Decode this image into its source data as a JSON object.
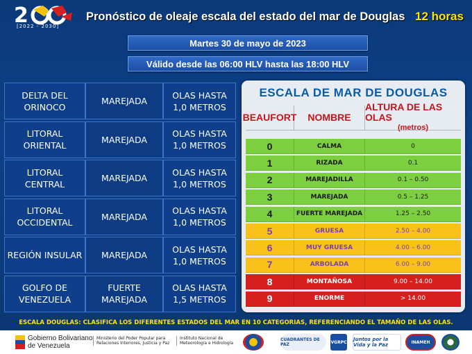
{
  "header": {
    "title": "Pronóstico de oleaje escala del estado del mar de Douglas",
    "hours": "12 horas",
    "logo_years": "[2022 - 2030]"
  },
  "date": "Martes 30 de mayo de 2023",
  "valid": "Válido desde las 06:00 HLV hasta las 18:00 HLV",
  "regions": [
    {
      "region": "DELTA DEL ORINOCO",
      "state": "MAREJADA",
      "waves": "OLAS HASTA 1,0 METROS"
    },
    {
      "region": "LITORAL ORIENTAL",
      "state": "MAREJADA",
      "waves": "OLAS HASTA 1,0 METROS"
    },
    {
      "region": "LITORAL CENTRAL",
      "state": "MAREJADA",
      "waves": "OLAS HASTA 1,0 METROS"
    },
    {
      "region": "LITORAL OCCIDENTAL",
      "state": "MAREJADA",
      "waves": "OLAS HASTA 1,0 METROS"
    },
    {
      "region": "REGIÓN INSULAR",
      "state": "MAREJADA",
      "waves": "OLAS HASTA 1,0 METROS"
    },
    {
      "region": "GOLFO DE VENEZUELA",
      "state": "FUERTE MAREJADA",
      "waves": "OLAS HASTA 1,5 METROS"
    }
  ],
  "scale": {
    "title": "ESCALA DE MAR DE DOUGLAS",
    "col_beaufort": "BEAUFORT",
    "col_name": "NOMBRE",
    "col_height": "ALTURA DE LAS OLAS",
    "col_height_unit": "(metros)",
    "rows": [
      {
        "level": "0",
        "name": "CALMA",
        "height": "0",
        "color": "#7ccf3f",
        "text": "#1a1a1a",
        "level_color": "#1a1a1a"
      },
      {
        "level": "1",
        "name": "RIZADA",
        "height": "0.1",
        "color": "#7ccf3f",
        "text": "#1a1a1a",
        "level_color": "#1a1a1a"
      },
      {
        "level": "2",
        "name": "MAREJADILLA",
        "height": "0.1 – 0.50",
        "color": "#7ccf3f",
        "text": "#1a1a1a",
        "level_color": "#1a1a1a"
      },
      {
        "level": "3",
        "name": "MAREJADA",
        "height": "0.5 – 1.25",
        "color": "#7ccf3f",
        "text": "#1a1a1a",
        "level_color": "#1a1a1a"
      },
      {
        "level": "4",
        "name": "FUERTE MAREJADA",
        "height": "1.25 – 2.50",
        "color": "#7ccf3f",
        "text": "#1a1a1a",
        "level_color": "#1a1a1a"
      },
      {
        "level": "5",
        "name": "GRUESA",
        "height": "2.50 – 4.00",
        "color": "#f8c21b",
        "text": "#7a3fb0",
        "level_color": "#7a3fb0"
      },
      {
        "level": "6",
        "name": "MUY GRUESA",
        "height": "4.00 – 6.00",
        "color": "#f8c21b",
        "text": "#7a3fb0",
        "level_color": "#7a3fb0"
      },
      {
        "level": "7",
        "name": "ARBOLADA",
        "height": "6.00 – 9.00",
        "color": "#f8c21b",
        "text": "#7a3fb0",
        "level_color": "#7a3fb0"
      },
      {
        "level": "8",
        "name": "MONTAÑOSA",
        "height": "9.00 – 14.00",
        "color": "#d61f1f",
        "text": "#ffffff",
        "level_color": "#ffffff"
      },
      {
        "level": "9",
        "name": "ENORME",
        "height": "> 14.00",
        "color": "#d61f1f",
        "text": "#ffffff",
        "level_color": "#ffffff"
      }
    ]
  },
  "footer_note": "ESCALA DOUGLAS:  CLASIFICA LOS DIFERENTES  ESTADOS DEL MAR EN 10 CATEGORIAS, REFERENCIANDO  EL TAMAÑO DE LAS OLAS.",
  "footer": {
    "gov_line1": "Gobierno Bolivariano",
    "gov_line2": "de Venezuela",
    "ministry": "Ministerio del Poder Popular para Relaciones Interiores, Justicia y Paz",
    "institute": "Instituto Nacional de Meteorología e Hidrología",
    "badge_cuadrantes": "CUADRANTES DE PAZ",
    "badge_vgrpc": "VGRPC",
    "badge_juntos": "Juntos por la Vida y la Paz",
    "badge_inameh": "INAMEH"
  }
}
